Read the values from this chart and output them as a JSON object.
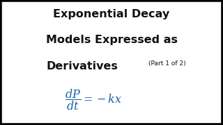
{
  "background_color": "#ffffff",
  "border_color": "#000000",
  "title_line1": "Exponential Decay",
  "title_line2": "Models Expressed as",
  "title_line3": "Derivatives",
  "subtitle": "(Part 1 of 2)",
  "title_color": "#111111",
  "subtitle_color": "#111111",
  "formula_color": "#1a5fa8",
  "title_fontsize": 11.5,
  "subtitle_fontsize": 6.5,
  "formula_fontsize": 11.5
}
